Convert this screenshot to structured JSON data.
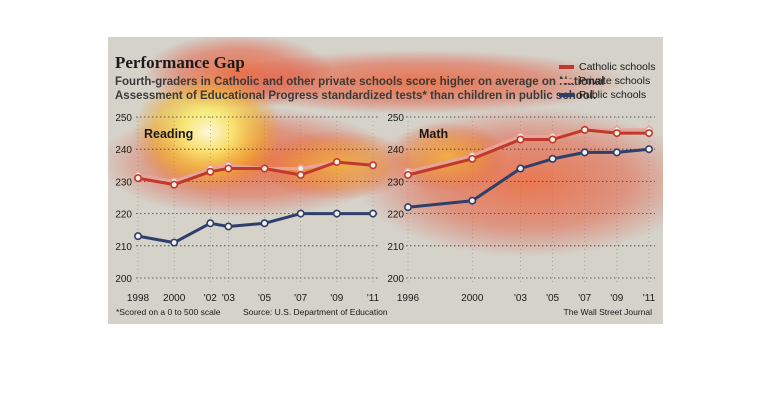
{
  "header": {
    "title": "Performance Gap",
    "subtitle_line1": "Fourth-graders in Catholic and other private schools score higher on average on National",
    "subtitle_line2": "Assessment of Educational Progress standardized tests* than children in public school."
  },
  "legend": [
    {
      "label": "Catholic schools",
      "color": "#c0392b"
    },
    {
      "label": "Private schools",
      "color": "#e8a39a"
    },
    {
      "label": "Public schools",
      "color": "#2e3f6b"
    }
  ],
  "footer": {
    "note": "*Scored on a 0 to 500 scale",
    "source": "Source: U.S. Department of Education",
    "credit": "The Wall Street Journal"
  },
  "chart_data": [
    {
      "type": "line",
      "title": "Reading",
      "ylim": [
        200,
        250
      ],
      "y_ticks": [
        200,
        210,
        220,
        230,
        240,
        250
      ],
      "x_range": [
        1998,
        2011
      ],
      "x_ticks": [
        1998,
        2000,
        2002,
        2003,
        2005,
        2007,
        2009,
        2011
      ],
      "x_tick_labels": [
        "1998",
        "2000",
        "'02",
        "'03",
        "'05",
        "'07",
        "'09",
        "'11"
      ],
      "x": [
        1998,
        2000,
        2002,
        2003,
        2005,
        2007,
        2009,
        2011
      ],
      "series": [
        {
          "name": "Public schools",
          "values": [
            213,
            211,
            217,
            216,
            217,
            220,
            220,
            220
          ]
        },
        {
          "name": "Private schools",
          "values": [
            232,
            230,
            234,
            235,
            234,
            234,
            236,
            235
          ]
        },
        {
          "name": "Catholic schools",
          "values": [
            231,
            229,
            233,
            234,
            234,
            232,
            236,
            235
          ]
        }
      ],
      "grid": true
    },
    {
      "type": "line",
      "title": "Math",
      "ylim": [
        200,
        250
      ],
      "y_ticks": [
        200,
        210,
        220,
        230,
        240,
        250
      ],
      "x_range": [
        1996,
        2011
      ],
      "x_ticks": [
        1996,
        2000,
        2003,
        2005,
        2007,
        2009,
        2011
      ],
      "x_tick_labels": [
        "1996",
        "2000",
        "'03",
        "'05",
        "'07",
        "'09",
        "'11"
      ],
      "x": [
        1996,
        2000,
        2003,
        2005,
        2007,
        2009,
        2011
      ],
      "series": [
        {
          "name": "Public schools",
          "values": [
            222,
            224,
            234,
            237,
            239,
            239,
            240
          ]
        },
        {
          "name": "Private schools",
          "values": [
            233,
            238,
            244,
            244,
            246,
            246,
            246
          ]
        },
        {
          "name": "Catholic schools",
          "values": [
            232,
            237,
            243,
            243,
            246,
            245,
            245
          ]
        }
      ],
      "grid": true
    }
  ]
}
